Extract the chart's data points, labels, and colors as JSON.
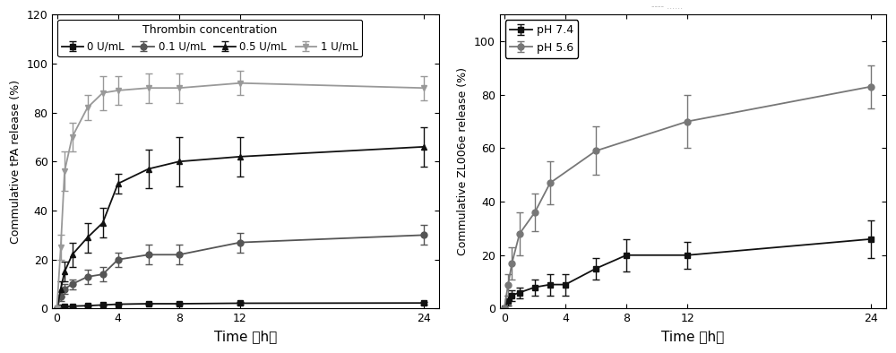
{
  "left_chart": {
    "ylabel": "Commulative tPA release (%)",
    "xlabel": "Time （h）",
    "ylim": [
      0,
      120
    ],
    "yticks": [
      0,
      20,
      40,
      60,
      80,
      100,
      120
    ],
    "xlim": [
      -0.3,
      25
    ],
    "xticks": [
      0,
      4,
      8,
      12,
      24
    ],
    "legend_title": "Thrombin concentration",
    "series": [
      {
        "label": "0 U/mL",
        "color": "#111111",
        "marker": "s",
        "x": [
          0,
          0.25,
          0.5,
          1,
          2,
          3,
          4,
          6,
          8,
          12,
          24
        ],
        "y": [
          0,
          0.5,
          0.8,
          1.0,
          1.2,
          1.5,
          1.8,
          2.0,
          2.0,
          2.2,
          2.3
        ],
        "yerr": [
          0,
          0.3,
          0.3,
          0.3,
          0.3,
          0.3,
          0.3,
          0.3,
          0.3,
          0.5,
          0.5
        ]
      },
      {
        "label": "0.1 U/mL",
        "color": "#555555",
        "marker": "o",
        "x": [
          0,
          0.25,
          0.5,
          1,
          2,
          3,
          4,
          6,
          8,
          12,
          24
        ],
        "y": [
          0,
          5,
          8,
          10,
          13,
          14,
          20,
          22,
          22,
          27,
          30
        ],
        "yerr": [
          0,
          2,
          2,
          2,
          3,
          3,
          3,
          4,
          4,
          4,
          4
        ]
      },
      {
        "label": "0.5 U/mL",
        "color": "#111111",
        "marker": "^",
        "x": [
          0,
          0.25,
          0.5,
          1,
          2,
          3,
          4,
          6,
          8,
          12,
          24
        ],
        "y": [
          0,
          8,
          15,
          22,
          29,
          35,
          51,
          57,
          60,
          62,
          66
        ],
        "yerr": [
          0,
          3,
          4,
          5,
          6,
          6,
          4,
          8,
          10,
          8,
          8
        ]
      },
      {
        "label": "1 U/mL",
        "color": "#999999",
        "marker": "v",
        "x": [
          0,
          0.25,
          0.5,
          1,
          2,
          3,
          4,
          6,
          8,
          12,
          24
        ],
        "y": [
          0,
          25,
          56,
          70,
          82,
          88,
          89,
          90,
          90,
          92,
          90
        ],
        "yerr": [
          0,
          5,
          8,
          6,
          5,
          7,
          6,
          6,
          6,
          5,
          5
        ]
      }
    ]
  },
  "right_chart": {
    "ylabel": "Commulative ZL006e release (%)",
    "xlabel": "Time （h）",
    "ylim": [
      0,
      110
    ],
    "yticks": [
      0,
      20,
      40,
      60,
      80,
      100
    ],
    "xlim": [
      -0.3,
      25
    ],
    "xticks": [
      0,
      4,
      8,
      12,
      24
    ],
    "series": [
      {
        "label": "pH 7.4",
        "color": "#111111",
        "marker": "s",
        "x": [
          0,
          0.25,
          0.5,
          1,
          2,
          3,
          4,
          6,
          8,
          12,
          24
        ],
        "y": [
          0,
          3,
          5,
          6,
          8,
          9,
          9,
          15,
          20,
          20,
          26
        ],
        "yerr": [
          0,
          2,
          2,
          2,
          3,
          4,
          4,
          4,
          6,
          5,
          7
        ]
      },
      {
        "label": "pH 5.6",
        "color": "#777777",
        "marker": "o",
        "x": [
          0,
          0.25,
          0.5,
          1,
          2,
          3,
          6,
          12,
          24
        ],
        "y": [
          0,
          9,
          17,
          28,
          36,
          47,
          59,
          70,
          83
        ],
        "yerr": [
          0,
          4,
          6,
          8,
          7,
          8,
          9,
          10,
          8
        ]
      }
    ]
  },
  "top_text": "---- ......",
  "figure_bg": "#ffffff"
}
